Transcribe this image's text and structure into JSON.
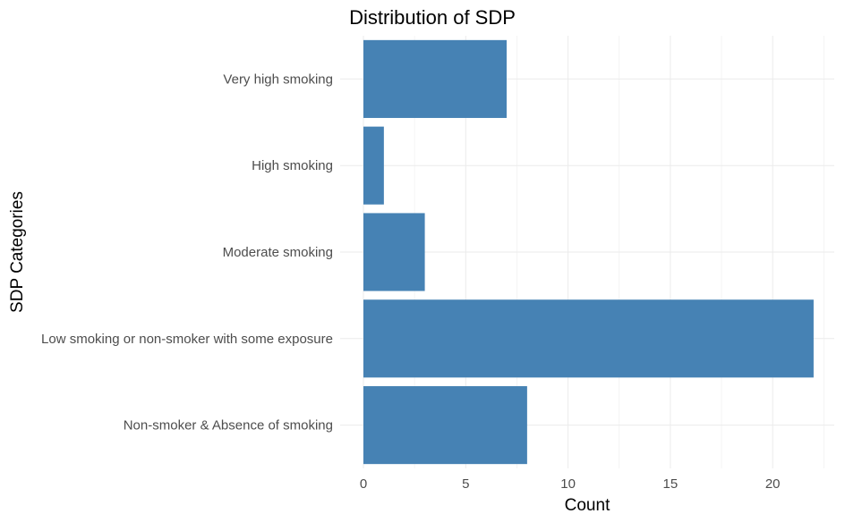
{
  "chart_data": {
    "type": "bar",
    "orientation": "horizontal",
    "title": "Distribution of SDP",
    "xlabel": "Count",
    "ylabel": "SDP Categories",
    "categories": [
      "Non-smoker & Absence of smoking",
      "Low smoking or non-smoker with some exposure",
      "Moderate smoking",
      "High smoking",
      "Very high smoking"
    ],
    "values": [
      8,
      22,
      3,
      1,
      7
    ],
    "xlim": [
      0,
      22
    ],
    "xticks": [
      0,
      5,
      10,
      15,
      20
    ],
    "xtick_labels": [
      "0",
      "5",
      "10",
      "15",
      "20"
    ],
    "bar_color": "#4682b4",
    "grid": true,
    "legend": "none"
  }
}
